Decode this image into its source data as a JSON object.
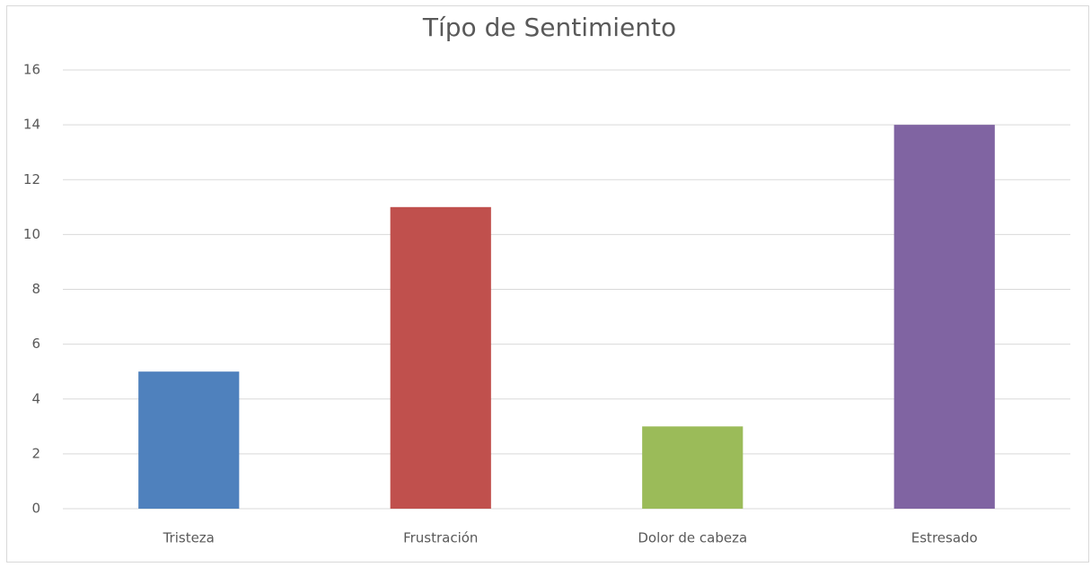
{
  "chart_data": {
    "type": "bar",
    "title": "Típo de Sentimiento",
    "categories": [
      "Tristeza",
      "Frustración",
      "Dolor de cabeza",
      "Estresado"
    ],
    "values": [
      5,
      11,
      3,
      14
    ],
    "colors": [
      "#4f81bd",
      "#c0504d",
      "#9bbb59",
      "#8064a2"
    ],
    "ylim": [
      0,
      16
    ],
    "yticks": [
      0,
      2,
      4,
      6,
      8,
      10,
      12,
      14,
      16
    ],
    "grid": true
  }
}
